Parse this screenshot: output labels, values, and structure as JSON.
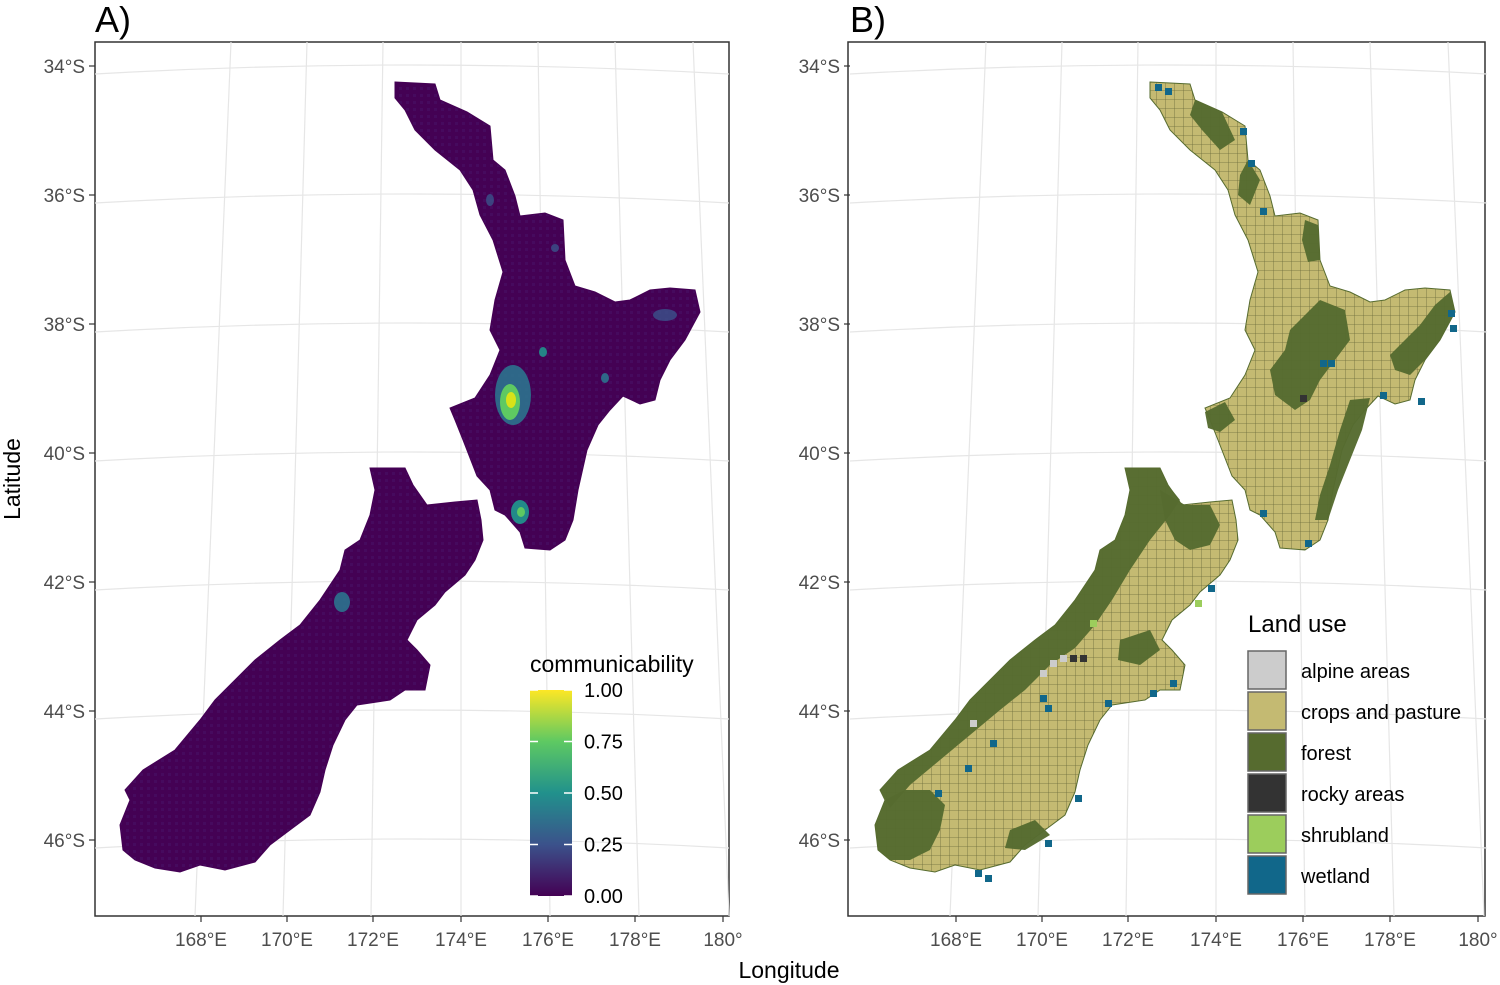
{
  "figure": {
    "xlabel": "Longitude",
    "ylabel": "Latitude",
    "lat_ticks": [
      "34°S",
      "36°S",
      "38°S",
      "40°S",
      "42°S",
      "44°S",
      "46°S"
    ],
    "lon_ticks": [
      "168°E",
      "170°E",
      "172°E",
      "174°E",
      "176°E",
      "178°E",
      "180°"
    ]
  },
  "panels": [
    {
      "tag": "A)",
      "legend": {
        "title": "communicability",
        "type": "continuous",
        "range": [
          0,
          1
        ],
        "tick_labels": [
          "1.00",
          "0.75",
          "0.50",
          "0.25",
          "0.00"
        ],
        "tick_values": [
          1.0,
          0.75,
          0.5,
          0.25,
          0.0
        ],
        "colors": [
          "#440154",
          "#3b528b",
          "#21918c",
          "#5ec962",
          "#fde725"
        ]
      },
      "fill_color": "#440154",
      "hotspot_color": "#35b779",
      "peak_color": "#d8e219"
    },
    {
      "tag": "B)",
      "legend": {
        "title": "Land use",
        "type": "categorical",
        "items": [
          {
            "label": "alpine areas",
            "color": "#cccccc"
          },
          {
            "label": "crops and pasture",
            "color": "#c4ba72"
          },
          {
            "label": "forest",
            "color": "#566b2f"
          },
          {
            "label": "rocky areas",
            "color": "#333333"
          },
          {
            "label": "shrubland",
            "color": "#9ccd5c"
          },
          {
            "label": "wetland",
            "color": "#11678a"
          }
        ]
      }
    }
  ],
  "chart_data": {
    "type": "map",
    "map_subject": "New Zealand",
    "lat_range": [
      -47,
      -34
    ],
    "lon_range": [
      166,
      180
    ],
    "grid": true
  }
}
